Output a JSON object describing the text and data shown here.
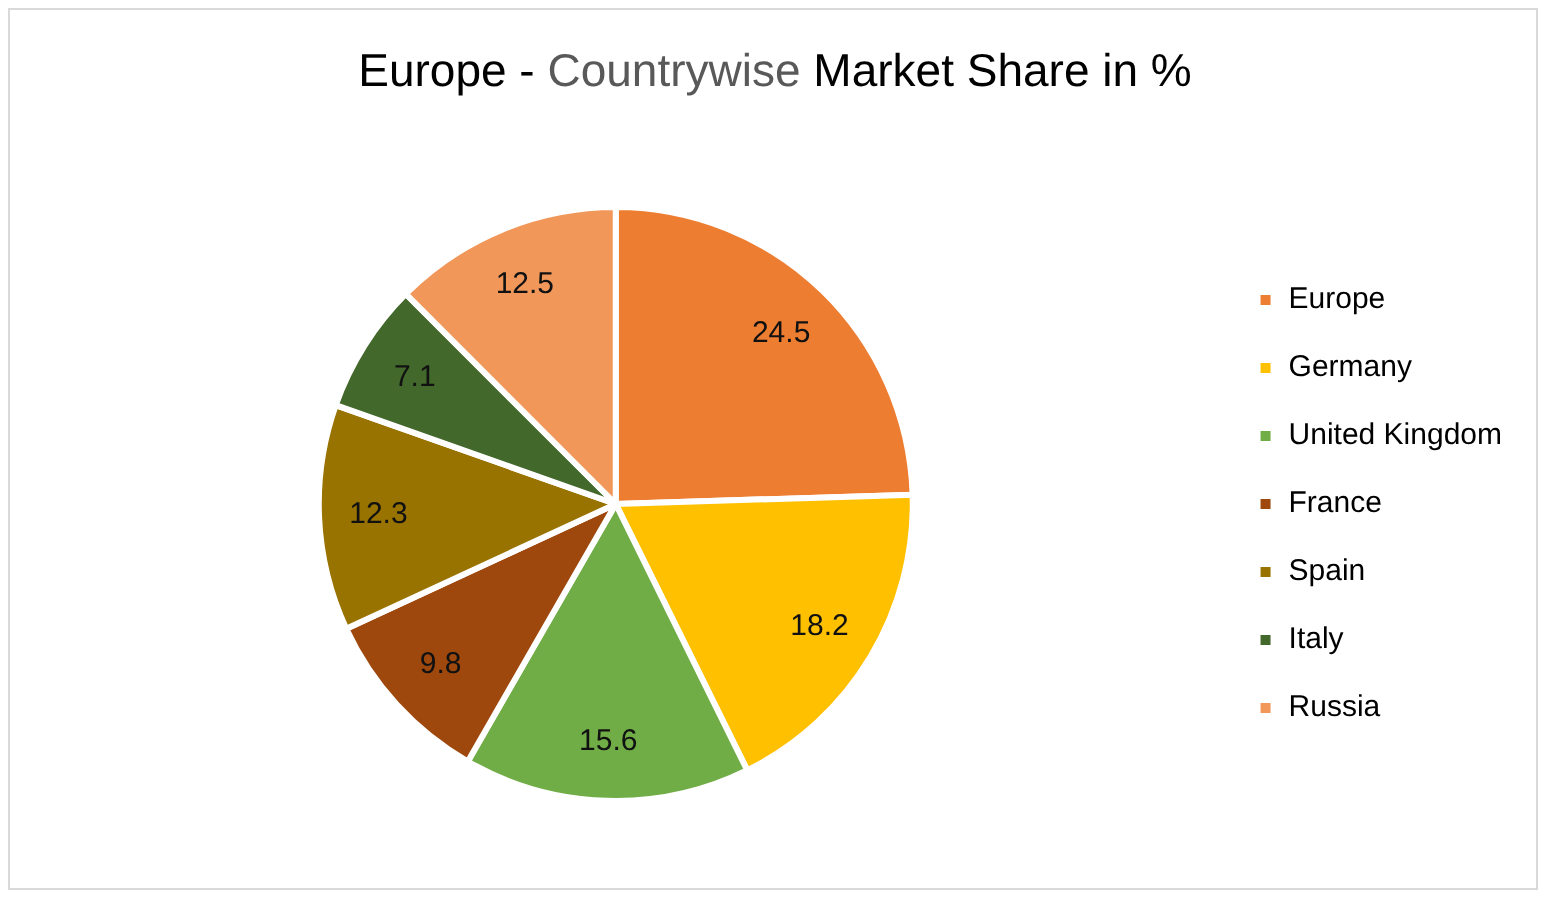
{
  "chart_data": {
    "type": "pie",
    "title": "Europe - Countrywise Market Share in %",
    "categories": [
      "Europe",
      "Germany",
      "United Kingdom",
      "France",
      "Spain",
      "Italy",
      "Russia"
    ],
    "values": [
      24.5,
      18.2,
      15.6,
      9.8,
      12.3,
      7.1,
      12.5
    ],
    "colors": [
      "#ed7d31",
      "#ffc000",
      "#70ad47",
      "#9e480e",
      "#997300",
      "#43682b",
      "#f1975a"
    ],
    "data_labels": true,
    "legend": "right"
  }
}
